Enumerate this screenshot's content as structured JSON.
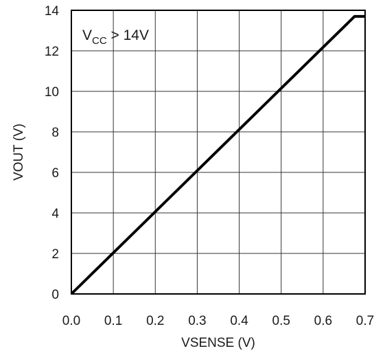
{
  "chart_data": {
    "type": "line",
    "xlabel": "VSENSE (V)",
    "ylabel": "VOUT (V)",
    "xlim": [
      0,
      0.7
    ],
    "ylim": [
      0,
      14
    ],
    "x_ticks": [
      "0.0",
      "0.1",
      "0.2",
      "0.3",
      "0.4",
      "0.5",
      "0.6",
      "0.7"
    ],
    "y_ticks": [
      "0",
      "2",
      "4",
      "6",
      "8",
      "10",
      "12",
      "14"
    ],
    "grid": true,
    "annotation": {
      "main": "V",
      "sub": "CC",
      "rest": " > 14V"
    },
    "series": [
      {
        "x": [
          0,
          0.675,
          0.7
        ],
        "y": [
          0,
          13.7,
          13.7
        ],
        "color": "#000000"
      }
    ]
  }
}
